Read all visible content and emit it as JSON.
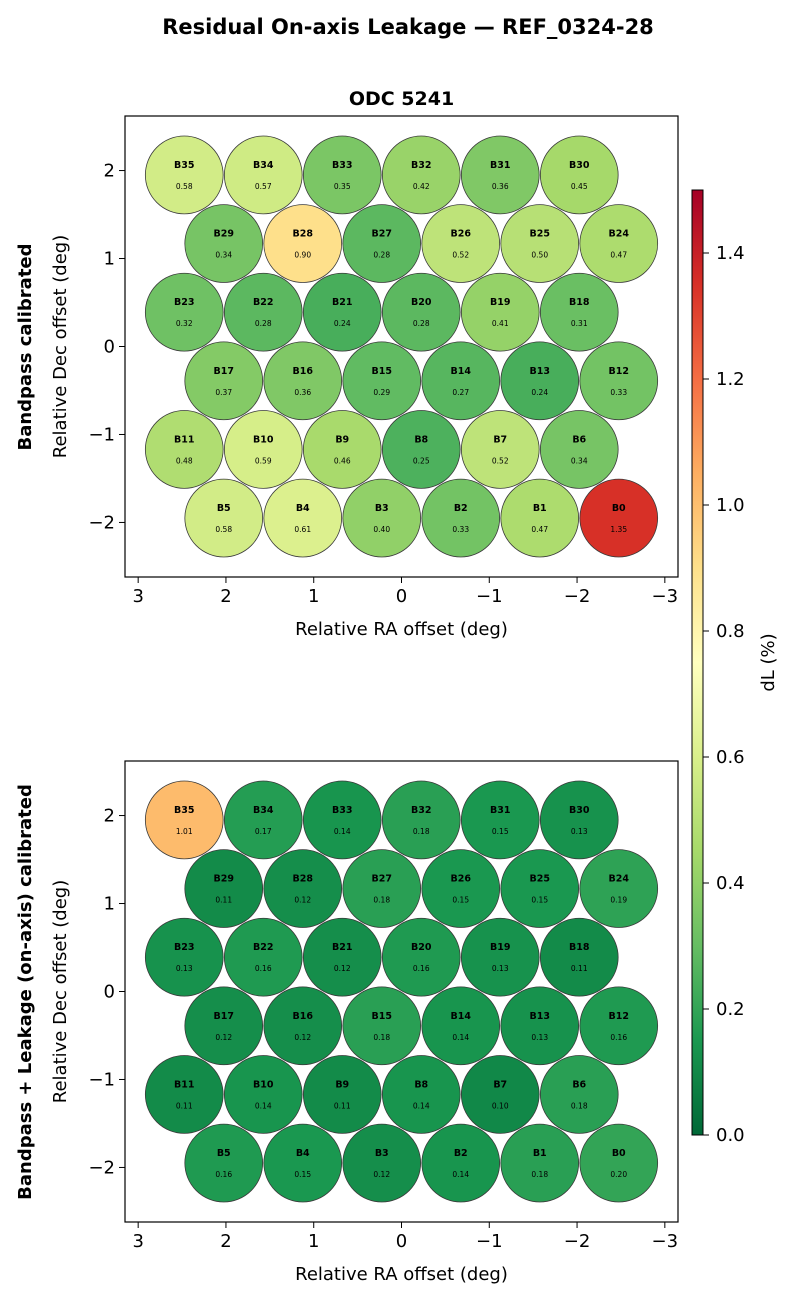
{
  "figure": {
    "suptitle": "Residual On-axis Leakage — REF_0324-28"
  },
  "colorbar": {
    "label": "dL  (%)",
    "range": [
      0.0,
      1.5
    ],
    "ticks": [
      "0.0",
      "0.2",
      "0.4",
      "0.6",
      "0.8",
      "1.0",
      "1.2",
      "1.4"
    ],
    "colormap": "RdYlGn_r",
    "colors": [
      "#006837",
      "#1a9850",
      "#66bd63",
      "#a6d96a",
      "#d9ef8b",
      "#ffffbf",
      "#fee08b",
      "#fdae61",
      "#f46d43",
      "#d73027",
      "#a50026"
    ]
  },
  "chart_data": [
    {
      "type": "scatter",
      "title": "ODC 5241",
      "row_label": "Bandpass calibrated",
      "xlabel": "Relative RA offset (deg)",
      "ylabel": "Relative Dec offset (deg)",
      "xlim": [
        3.15,
        -3.15
      ],
      "ylim": [
        -2.62,
        2.62
      ],
      "xticks": [
        3,
        2,
        1,
        0,
        -1,
        -2,
        -3
      ],
      "xtick_labels": [
        "3",
        "2",
        "1",
        "0",
        "−1",
        "−2",
        "−3"
      ],
      "yticks": [
        2,
        1,
        0,
        -1,
        -2
      ],
      "ytick_labels": [
        "2",
        "1",
        "0",
        "−1",
        "−2"
      ],
      "beams": [
        {
          "name": "B35",
          "ra": 2.475,
          "dec": 1.95,
          "value": 0.58,
          "label": "0.58"
        },
        {
          "name": "B34",
          "ra": 1.575,
          "dec": 1.95,
          "value": 0.57,
          "label": "0.57"
        },
        {
          "name": "B33",
          "ra": 0.675,
          "dec": 1.95,
          "value": 0.35,
          "label": "0.35"
        },
        {
          "name": "B32",
          "ra": -0.225,
          "dec": 1.95,
          "value": 0.42,
          "label": "0.42"
        },
        {
          "name": "B31",
          "ra": -1.125,
          "dec": 1.95,
          "value": 0.36,
          "label": "0.36"
        },
        {
          "name": "B30",
          "ra": -2.025,
          "dec": 1.95,
          "value": 0.45,
          "label": "0.45"
        },
        {
          "name": "B29",
          "ra": 2.025,
          "dec": 1.17,
          "value": 0.34,
          "label": "0.34"
        },
        {
          "name": "B28",
          "ra": 1.125,
          "dec": 1.17,
          "value": 0.9,
          "label": "0.90"
        },
        {
          "name": "B27",
          "ra": 0.225,
          "dec": 1.17,
          "value": 0.28,
          "label": "0.28"
        },
        {
          "name": "B26",
          "ra": -0.675,
          "dec": 1.17,
          "value": 0.52,
          "label": "0.52"
        },
        {
          "name": "B25",
          "ra": -1.575,
          "dec": 1.17,
          "value": 0.5,
          "label": "0.50"
        },
        {
          "name": "B24",
          "ra": -2.475,
          "dec": 1.17,
          "value": 0.47,
          "label": "0.47"
        },
        {
          "name": "B23",
          "ra": 2.475,
          "dec": 0.39,
          "value": 0.32,
          "label": "0.32"
        },
        {
          "name": "B22",
          "ra": 1.575,
          "dec": 0.39,
          "value": 0.28,
          "label": "0.28"
        },
        {
          "name": "B21",
          "ra": 0.675,
          "dec": 0.39,
          "value": 0.24,
          "label": "0.24"
        },
        {
          "name": "B20",
          "ra": -0.225,
          "dec": 0.39,
          "value": 0.28,
          "label": "0.28"
        },
        {
          "name": "B19",
          "ra": -1.125,
          "dec": 0.39,
          "value": 0.41,
          "label": "0.41"
        },
        {
          "name": "B18",
          "ra": -2.025,
          "dec": 0.39,
          "value": 0.31,
          "label": "0.31"
        },
        {
          "name": "B17",
          "ra": 2.025,
          "dec": -0.39,
          "value": 0.37,
          "label": "0.37"
        },
        {
          "name": "B16",
          "ra": 1.125,
          "dec": -0.39,
          "value": 0.36,
          "label": "0.36"
        },
        {
          "name": "B15",
          "ra": 0.225,
          "dec": -0.39,
          "value": 0.29,
          "label": "0.29"
        },
        {
          "name": "B14",
          "ra": -0.675,
          "dec": -0.39,
          "value": 0.27,
          "label": "0.27"
        },
        {
          "name": "B13",
          "ra": -1.575,
          "dec": -0.39,
          "value": 0.24,
          "label": "0.24"
        },
        {
          "name": "B12",
          "ra": -2.475,
          "dec": -0.39,
          "value": 0.33,
          "label": "0.33"
        },
        {
          "name": "B11",
          "ra": 2.475,
          "dec": -1.17,
          "value": 0.48,
          "label": "0.48"
        },
        {
          "name": "B10",
          "ra": 1.575,
          "dec": -1.17,
          "value": 0.59,
          "label": "0.59"
        },
        {
          "name": "B9",
          "ra": 0.675,
          "dec": -1.17,
          "value": 0.46,
          "label": "0.46"
        },
        {
          "name": "B8",
          "ra": -0.225,
          "dec": -1.17,
          "value": 0.25,
          "label": "0.25"
        },
        {
          "name": "B7",
          "ra": -1.125,
          "dec": -1.17,
          "value": 0.52,
          "label": "0.52"
        },
        {
          "name": "B6",
          "ra": -2.025,
          "dec": -1.17,
          "value": 0.34,
          "label": "0.34"
        },
        {
          "name": "B5",
          "ra": 2.025,
          "dec": -1.95,
          "value": 0.58,
          "label": "0.58"
        },
        {
          "name": "B4",
          "ra": 1.125,
          "dec": -1.95,
          "value": 0.61,
          "label": "0.61"
        },
        {
          "name": "B3",
          "ra": 0.225,
          "dec": -1.95,
          "value": 0.4,
          "label": "0.40"
        },
        {
          "name": "B2",
          "ra": -0.675,
          "dec": -1.95,
          "value": 0.33,
          "label": "0.33"
        },
        {
          "name": "B1",
          "ra": -1.575,
          "dec": -1.95,
          "value": 0.47,
          "label": "0.47"
        },
        {
          "name": "B0",
          "ra": -2.475,
          "dec": -1.95,
          "value": 1.35,
          "label": "1.35"
        }
      ]
    },
    {
      "type": "scatter",
      "title": "",
      "row_label": "Bandpass + Leakage (on-axis) calibrated",
      "xlabel": "Relative RA offset (deg)",
      "ylabel": "Relative Dec offset (deg)",
      "xlim": [
        3.15,
        -3.15
      ],
      "ylim": [
        -2.62,
        2.62
      ],
      "xticks": [
        3,
        2,
        1,
        0,
        -1,
        -2,
        -3
      ],
      "xtick_labels": [
        "3",
        "2",
        "1",
        "0",
        "−1",
        "−2",
        "−3"
      ],
      "yticks": [
        2,
        1,
        0,
        -1,
        -2
      ],
      "ytick_labels": [
        "2",
        "1",
        "0",
        "−1",
        "−2"
      ],
      "beams": [
        {
          "name": "B35",
          "ra": 2.475,
          "dec": 1.95,
          "value": 1.01,
          "label": "1.01"
        },
        {
          "name": "B34",
          "ra": 1.575,
          "dec": 1.95,
          "value": 0.17,
          "label": "0.17"
        },
        {
          "name": "B33",
          "ra": 0.675,
          "dec": 1.95,
          "value": 0.14,
          "label": "0.14"
        },
        {
          "name": "B32",
          "ra": -0.225,
          "dec": 1.95,
          "value": 0.18,
          "label": "0.18"
        },
        {
          "name": "B31",
          "ra": -1.125,
          "dec": 1.95,
          "value": 0.15,
          "label": "0.15"
        },
        {
          "name": "B30",
          "ra": -2.025,
          "dec": 1.95,
          "value": 0.13,
          "label": "0.13"
        },
        {
          "name": "B29",
          "ra": 2.025,
          "dec": 1.17,
          "value": 0.11,
          "label": "0.11"
        },
        {
          "name": "B28",
          "ra": 1.125,
          "dec": 1.17,
          "value": 0.12,
          "label": "0.12"
        },
        {
          "name": "B27",
          "ra": 0.225,
          "dec": 1.17,
          "value": 0.18,
          "label": "0.18"
        },
        {
          "name": "B26",
          "ra": -0.675,
          "dec": 1.17,
          "value": 0.15,
          "label": "0.15"
        },
        {
          "name": "B25",
          "ra": -1.575,
          "dec": 1.17,
          "value": 0.15,
          "label": "0.15"
        },
        {
          "name": "B24",
          "ra": -2.475,
          "dec": 1.17,
          "value": 0.19,
          "label": "0.19"
        },
        {
          "name": "B23",
          "ra": 2.475,
          "dec": 0.39,
          "value": 0.13,
          "label": "0.13"
        },
        {
          "name": "B22",
          "ra": 1.575,
          "dec": 0.39,
          "value": 0.16,
          "label": "0.16"
        },
        {
          "name": "B21",
          "ra": 0.675,
          "dec": 0.39,
          "value": 0.12,
          "label": "0.12"
        },
        {
          "name": "B20",
          "ra": -0.225,
          "dec": 0.39,
          "value": 0.16,
          "label": "0.16"
        },
        {
          "name": "B19",
          "ra": -1.125,
          "dec": 0.39,
          "value": 0.13,
          "label": "0.13"
        },
        {
          "name": "B18",
          "ra": -2.025,
          "dec": 0.39,
          "value": 0.11,
          "label": "0.11"
        },
        {
          "name": "B17",
          "ra": 2.025,
          "dec": -0.39,
          "value": 0.12,
          "label": "0.12"
        },
        {
          "name": "B16",
          "ra": 1.125,
          "dec": -0.39,
          "value": 0.12,
          "label": "0.12"
        },
        {
          "name": "B15",
          "ra": 0.225,
          "dec": -0.39,
          "value": 0.18,
          "label": "0.18"
        },
        {
          "name": "B14",
          "ra": -0.675,
          "dec": -0.39,
          "value": 0.14,
          "label": "0.14"
        },
        {
          "name": "B13",
          "ra": -1.575,
          "dec": -0.39,
          "value": 0.13,
          "label": "0.13"
        },
        {
          "name": "B12",
          "ra": -2.475,
          "dec": -0.39,
          "value": 0.16,
          "label": "0.16"
        },
        {
          "name": "B11",
          "ra": 2.475,
          "dec": -1.17,
          "value": 0.11,
          "label": "0.11"
        },
        {
          "name": "B10",
          "ra": 1.575,
          "dec": -1.17,
          "value": 0.14,
          "label": "0.14"
        },
        {
          "name": "B9",
          "ra": 0.675,
          "dec": -1.17,
          "value": 0.11,
          "label": "0.11"
        },
        {
          "name": "B8",
          "ra": -0.225,
          "dec": -1.17,
          "value": 0.14,
          "label": "0.14"
        },
        {
          "name": "B7",
          "ra": -1.125,
          "dec": -1.17,
          "value": 0.1,
          "label": "0.10"
        },
        {
          "name": "B6",
          "ra": -2.025,
          "dec": -1.17,
          "value": 0.18,
          "label": "0.18"
        },
        {
          "name": "B5",
          "ra": 2.025,
          "dec": -1.95,
          "value": 0.16,
          "label": "0.16"
        },
        {
          "name": "B4",
          "ra": 1.125,
          "dec": -1.95,
          "value": 0.15,
          "label": "0.15"
        },
        {
          "name": "B3",
          "ra": 0.225,
          "dec": -1.95,
          "value": 0.12,
          "label": "0.12"
        },
        {
          "name": "B2",
          "ra": -0.675,
          "dec": -1.95,
          "value": 0.14,
          "label": "0.14"
        },
        {
          "name": "B1",
          "ra": -1.575,
          "dec": -1.95,
          "value": 0.18,
          "label": "0.18"
        },
        {
          "name": "B0",
          "ra": -2.475,
          "dec": -1.95,
          "value": 0.2,
          "label": "0.20"
        }
      ]
    }
  ]
}
